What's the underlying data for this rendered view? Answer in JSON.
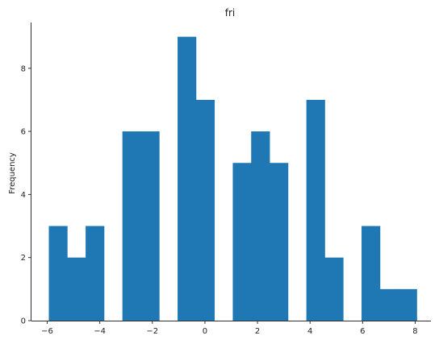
{
  "chart_data": {
    "type": "bar",
    "title": "fri",
    "xlabel": "",
    "ylabel": "Frequency",
    "xlim": [
      -6.6,
      8.6
    ],
    "ylim": [
      0,
      9.45
    ],
    "bar_color": "#1f77b4",
    "bins": [
      {
        "x0": -5.94,
        "x1": -5.24,
        "count": 3
      },
      {
        "x0": -5.24,
        "x1": -4.54,
        "count": 2
      },
      {
        "x0": -4.54,
        "x1": -3.84,
        "count": 3
      },
      {
        "x0": -3.84,
        "x1": -3.14,
        "count": 0
      },
      {
        "x0": -3.14,
        "x1": -2.44,
        "count": 6
      },
      {
        "x0": -2.44,
        "x1": -1.74,
        "count": 6
      },
      {
        "x0": -1.74,
        "x1": -1.04,
        "count": 0
      },
      {
        "x0": -1.04,
        "x1": -0.34,
        "count": 9
      },
      {
        "x0": -0.34,
        "x1": 0.36,
        "count": 7
      },
      {
        "x0": 0.36,
        "x1": 1.06,
        "count": 0
      },
      {
        "x0": 1.06,
        "x1": 1.76,
        "count": 5
      },
      {
        "x0": 1.76,
        "x1": 2.46,
        "count": 6
      },
      {
        "x0": 2.46,
        "x1": 3.16,
        "count": 5
      },
      {
        "x0": 3.16,
        "x1": 3.86,
        "count": 0
      },
      {
        "x0": 3.86,
        "x1": 4.56,
        "count": 7
      },
      {
        "x0": 4.56,
        "x1": 5.26,
        "count": 2
      },
      {
        "x0": 5.26,
        "x1": 5.96,
        "count": 0
      },
      {
        "x0": 5.96,
        "x1": 6.66,
        "count": 3
      },
      {
        "x0": 6.66,
        "x1": 7.36,
        "count": 1
      },
      {
        "x0": 7.36,
        "x1": 8.06,
        "count": 1
      }
    ],
    "x_ticks": [
      {
        "value": -6,
        "label": "−6"
      },
      {
        "value": -4,
        "label": "−4"
      },
      {
        "value": -2,
        "label": "−2"
      },
      {
        "value": 0,
        "label": "0"
      },
      {
        "value": 2,
        "label": "2"
      },
      {
        "value": 4,
        "label": "4"
      },
      {
        "value": 6,
        "label": "6"
      },
      {
        "value": 8,
        "label": "8"
      }
    ],
    "y_ticks": [
      {
        "value": 0,
        "label": "0"
      },
      {
        "value": 2,
        "label": "2"
      },
      {
        "value": 4,
        "label": "4"
      },
      {
        "value": 6,
        "label": "6"
      },
      {
        "value": 8,
        "label": "8"
      }
    ],
    "grid": false,
    "spines": [
      "left",
      "bottom"
    ]
  }
}
